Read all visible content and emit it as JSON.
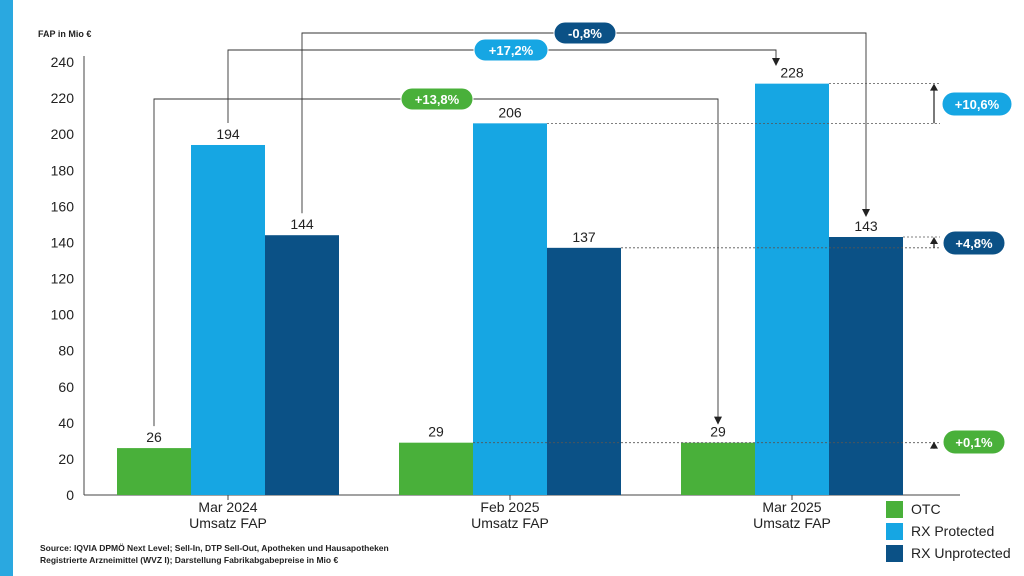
{
  "chart_data": {
    "type": "bar",
    "ylabel": "FAP in Mio €",
    "ylim": [
      0,
      240
    ],
    "yticks": [
      0,
      20,
      40,
      60,
      80,
      100,
      120,
      140,
      160,
      180,
      200,
      220,
      240
    ],
    "categories": [
      [
        "Mar 2024",
        "Umsatz FAP"
      ],
      [
        "Feb 2025",
        "Umsatz FAP"
      ],
      [
        "Mar 2025",
        "Umsatz FAP"
      ]
    ],
    "series": [
      {
        "name": "OTC",
        "color": "#49b03a",
        "values": [
          26,
          29,
          29
        ]
      },
      {
        "name": "RX Protected",
        "color": "#16a6e3",
        "values": [
          194,
          206,
          228
        ]
      },
      {
        "name": "RX Unprotected",
        "color": "#0b5186",
        "values": [
          144,
          137,
          143
        ]
      }
    ],
    "data_labels": [
      [
        "26",
        "29",
        "29"
      ],
      [
        "194",
        "206",
        "228"
      ],
      [
        "144",
        "137",
        "143"
      ]
    ],
    "grid": false,
    "legend_position": "bottom-right",
    "annotations": {
      "otc_yoy": {
        "text": "+13,8%",
        "color": "#49b03a"
      },
      "rxp_yoy": {
        "text": "+17,2%",
        "color": "#16a6e3"
      },
      "rxu_yoy": {
        "text": "-0,8%",
        "color": "#0b5186"
      },
      "rxp_mom": {
        "text": "+10,6%",
        "color": "#16a6e3"
      },
      "rxu_mom": {
        "text": "+4,8%",
        "color": "#0b5186"
      },
      "otc_mom": {
        "text": "+0,1%",
        "color": "#49b03a"
      }
    }
  },
  "source": {
    "line1": "Source: IQVIA DPMÖ Next Level; Sell-In, DTP Sell-Out, Apotheken und Hausapotheken",
    "line2": "Registrierte Arzneimittel (WVZ I); Darstellung Fabrikabgabepreise in Mio €"
  },
  "colors": {
    "accent_bar": "#2aa8e0"
  }
}
